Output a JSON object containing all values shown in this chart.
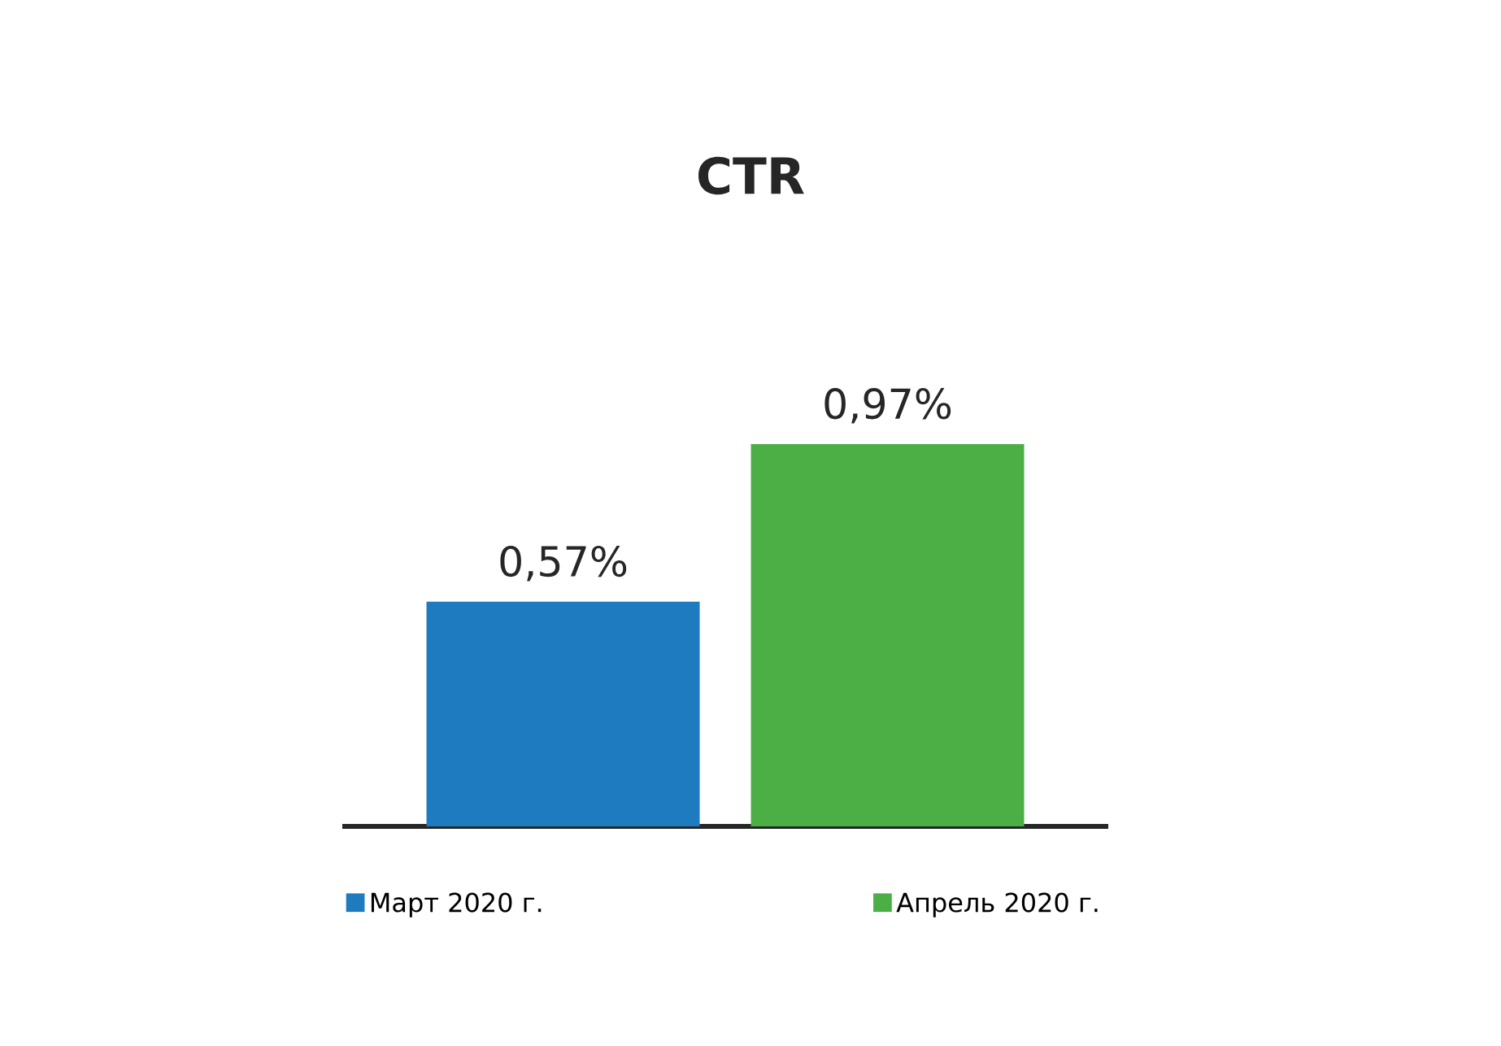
{
  "chart_data": {
    "type": "bar",
    "title": "CTR",
    "categories": [
      null
    ],
    "series": [
      {
        "name": "Март 2020 г.",
        "color": "#1f7bbf",
        "values": [
          0.57
        ],
        "value_labels": [
          "0,57%"
        ]
      },
      {
        "name": "Апрель 2020 г.",
        "color": "#4caf46",
        "values": [
          0.97
        ],
        "value_labels": [
          "0,97%"
        ]
      }
    ],
    "legend": "bottom"
  }
}
